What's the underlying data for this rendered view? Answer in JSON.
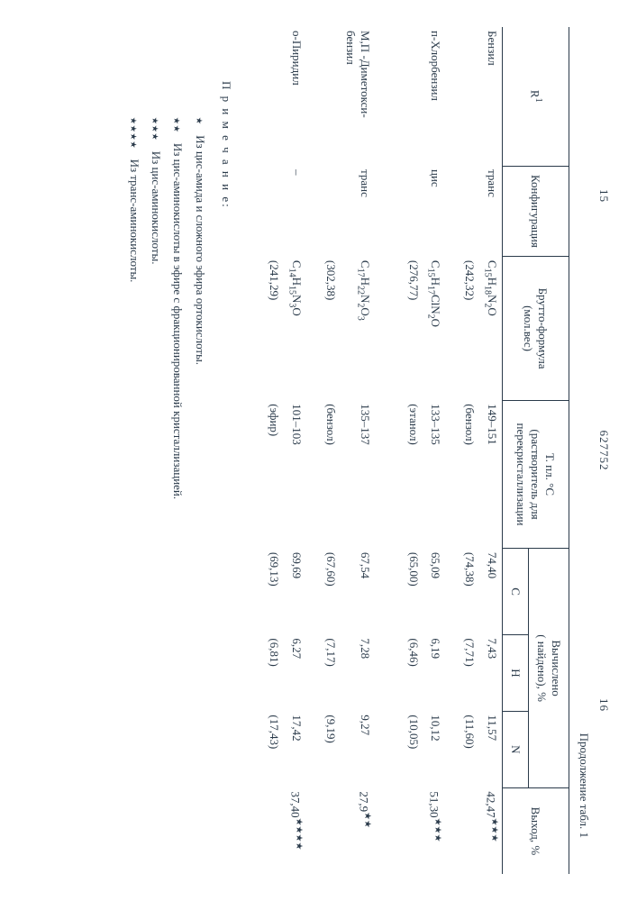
{
  "page_left": "15",
  "patent_no": "627752",
  "page_right": "16",
  "table_caption": "Продолжение табл. 1",
  "head": {
    "r1": "R¹",
    "config": "Конфигурация",
    "formula_l1": "Брутто-формула",
    "formula_l2": "(мол.вес)",
    "mp_l1": "Т. пл. °С",
    "mp_l2": "(растворитель для",
    "mp_l3": "перекристаллизации",
    "calc_l1": "Вычислено",
    "calc_l2": "( найдено), %",
    "C": "C",
    "H": "H",
    "N": "N",
    "yield": "Выход, %"
  },
  "rows": [
    {
      "r1": "Бензил",
      "config": "транс",
      "formula_tex": "C₁₅H₁₈N₂O",
      "molwt": "(242,32)",
      "mp": "149–151",
      "solvent": "(бензол)",
      "C": "74,40",
      "Cf": "(74,38)",
      "H": "7,43",
      "Hf": "(7,71)",
      "N": "11,57",
      "Nf": "(11,60)",
      "yield": "42,47",
      "stars": "★★★"
    },
    {
      "r1": "п-Хлорбензил",
      "config": "цис",
      "formula_tex": "C₁₅H₁₇ClN₂O",
      "molwt": "(276,77)",
      "mp": "133–135",
      "solvent": "(этанол)",
      "C": "65,09",
      "Cf": "(65,00)",
      "H": "6,19",
      "Hf": "(6,46)",
      "N": "10,12",
      "Nf": "(10,05)",
      "yield": "51,30",
      "stars": "★★★"
    },
    {
      "r1_line1": "М,П -Диметокси-",
      "r1_line2": "бензил",
      "config": "транс",
      "formula_tex": "C₁₇H₂₂N₂O₃",
      "molwt": "(302,38)",
      "mp": "135–137",
      "solvent": "(бензол)",
      "C": "67,54",
      "Cf": "(67,60)",
      "H": "7,28",
      "Hf": "(7,17)",
      "N": "9,27",
      "Nf": "(9,19)",
      "yield": "27,9",
      "stars": "★★"
    },
    {
      "r1": "о-Пиридил",
      "config": "–",
      "formula_tex": "C₁₄H₁₅N₃O",
      "molwt": "(241,29)",
      "mp": "101–103",
      "solvent": "(эфир)",
      "C": "69,69",
      "Cf": "(69,13)",
      "H": "6,27",
      "Hf": "(6,81)",
      "N": "17,42",
      "Nf": "(17,43)",
      "yield": "37,40",
      "stars": "★★★★"
    }
  ],
  "notes": {
    "lead": "П р и м е ч а н и е:",
    "n1_mark": "★",
    "n1": "Из цис-амида и сложного эфира ортокислоты.",
    "n2_mark": "★★",
    "n2": "Из цис-аминокислоты в эфире с фракционированной кристаллизацией.",
    "n3_mark": "★★★",
    "n3": "Из цис-аминокислоты.",
    "n4_mark": "★★★★",
    "n4": "Из транс-аминокислоты."
  },
  "colors": {
    "text": "#2a3a4a",
    "bg": "#ffffff",
    "rule": "#2a3a4a"
  }
}
